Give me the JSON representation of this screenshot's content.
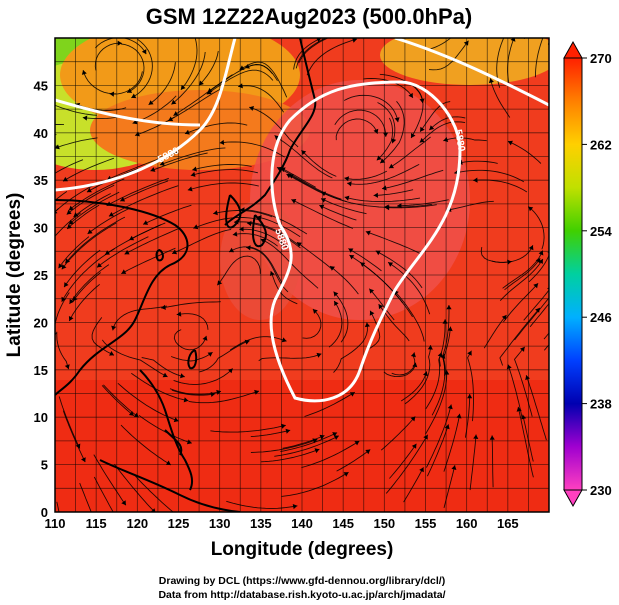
{
  "chart_data": {
    "type": "heatmap",
    "title": "GSM 12Z22Aug2023 (500.0hPa)",
    "xlabel": "Longitude (degrees)",
    "ylabel": "Latitude  (degrees)",
    "xlim": [
      110,
      170
    ],
    "ylim": [
      0,
      50
    ],
    "x_ticks": [
      110,
      115,
      120,
      125,
      130,
      135,
      140,
      145,
      150,
      155,
      160,
      165
    ],
    "y_ticks": [
      0,
      5,
      10,
      15,
      20,
      25,
      30,
      35,
      40,
      45
    ],
    "grid": true,
    "colorbar": {
      "min": 230,
      "max": 270,
      "ticks": [
        230,
        238,
        246,
        254,
        262,
        270
      ],
      "colors": [
        "#ff40c0",
        "#a000d0",
        "#0000b0",
        "#0040ff",
        "#00b0ff",
        "#00d0a0",
        "#40d000",
        "#c0e000",
        "#ffd000",
        "#ff8000",
        "#ff2000"
      ]
    },
    "contours": [
      {
        "level": "5880",
        "label": "5880"
      },
      {
        "level": "5880",
        "label": "5880"
      },
      {
        "level": "5880",
        "label": "5880"
      }
    ],
    "overlays": [
      "streamlines",
      "coastlines"
    ]
  },
  "credits": {
    "line1": "Drawing by DCL (https://www.gfd-dennou.org/library/dcl/)",
    "line2": "Data from http://database.rish.kyoto-u.ac.jp/arch/jmadata/"
  }
}
